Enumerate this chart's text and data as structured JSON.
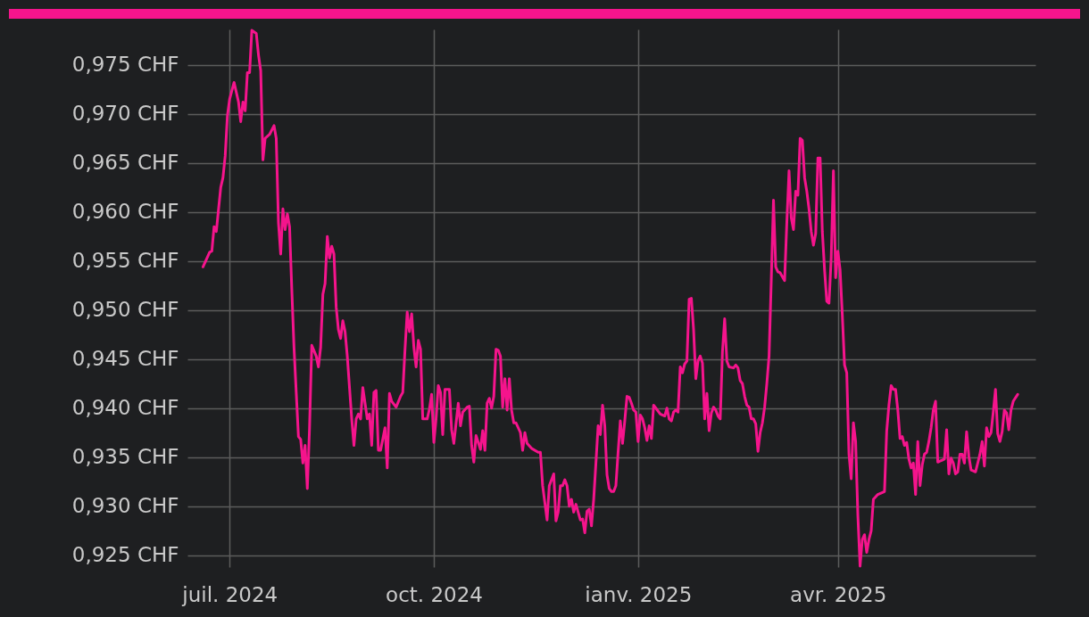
{
  "chart_data": {
    "type": "line",
    "xlim": [
      "2024-06-12",
      "2025-06-29"
    ],
    "ylim": [
      0.9238,
      0.9786
    ],
    "xticks": [
      {
        "value": "2024-07-01",
        "label": "juil. 2024"
      },
      {
        "value": "2024-10-01",
        "label": "oct. 2024"
      },
      {
        "value": "2025-01-01",
        "label": "ianv. 2025"
      },
      {
        "value": "2025-04-01",
        "label": "avr. 2025"
      }
    ],
    "yticks": [
      {
        "value": 0.925,
        "label": "0,925 CHF"
      },
      {
        "value": 0.93,
        "label": "0,930 CHF"
      },
      {
        "value": 0.935,
        "label": "0,935 CHF"
      },
      {
        "value": 0.94,
        "label": "0,940 CHF"
      },
      {
        "value": 0.945,
        "label": "0,945 CHF"
      },
      {
        "value": 0.95,
        "label": "0,950 CHF"
      },
      {
        "value": 0.955,
        "label": "0,955 CHF"
      },
      {
        "value": 0.96,
        "label": "0,960 CHF"
      },
      {
        "value": 0.965,
        "label": "0,965 CHF"
      },
      {
        "value": 0.97,
        "label": "0,970 CHF"
      },
      {
        "value": 0.975,
        "label": "0,975 CHF"
      }
    ],
    "grid": true,
    "marker": "none",
    "line_style": "solid",
    "series": [
      {
        "color": "#f5148c",
        "x": [
          "2024-06-19",
          "2024-06-22",
          "2024-06-23",
          "2024-06-24",
          "2024-06-25",
          "2024-06-27",
          "2024-06-28",
          "2024-06-29",
          "2024-06-30",
          "2024-07-01",
          "2024-07-03",
          "2024-07-05",
          "2024-07-06",
          "2024-07-07",
          "2024-07-08",
          "2024-07-09",
          "2024-07-10",
          "2024-07-11",
          "2024-07-13",
          "2024-07-14",
          "2024-07-15",
          "2024-07-16",
          "2024-07-17",
          "2024-07-19",
          "2024-07-21",
          "2024-07-22",
          "2024-07-23",
          "2024-07-24",
          "2024-07-25",
          "2024-07-26",
          "2024-07-27",
          "2024-07-28",
          "2024-07-29",
          "2024-07-30",
          "2024-07-31",
          "2024-08-01",
          "2024-08-02",
          "2024-08-03",
          "2024-08-04",
          "2024-08-05",
          "2024-08-06",
          "2024-08-07",
          "2024-08-09",
          "2024-08-10",
          "2024-08-11",
          "2024-08-12",
          "2024-08-13",
          "2024-08-14",
          "2024-08-15",
          "2024-08-16",
          "2024-08-17",
          "2024-08-18",
          "2024-08-19",
          "2024-08-20",
          "2024-08-21",
          "2024-08-22",
          "2024-08-23",
          "2024-08-25",
          "2024-08-26",
          "2024-08-27",
          "2024-08-28",
          "2024-08-29",
          "2024-08-30",
          "2024-08-31",
          "2024-09-01",
          "2024-09-02",
          "2024-09-03",
          "2024-09-04",
          "2024-09-05",
          "2024-09-06",
          "2024-09-07",
          "2024-09-09",
          "2024-09-10",
          "2024-09-11",
          "2024-09-12",
          "2024-09-14",
          "2024-09-16",
          "2024-09-17",
          "2024-09-18",
          "2024-09-19",
          "2024-09-20",
          "2024-09-21",
          "2024-09-22",
          "2024-09-23",
          "2024-09-24",
          "2024-09-25",
          "2024-09-26",
          "2024-09-28",
          "2024-09-29",
          "2024-09-30",
          "2024-10-01",
          "2024-10-02",
          "2024-10-03",
          "2024-10-04",
          "2024-10-05",
          "2024-10-06",
          "2024-10-08",
          "2024-10-09",
          "2024-10-10",
          "2024-10-12",
          "2024-10-13",
          "2024-10-14",
          "2024-10-16",
          "2024-10-17",
          "2024-10-18",
          "2024-10-19",
          "2024-10-20",
          "2024-10-22",
          "2024-10-23",
          "2024-10-24",
          "2024-10-25",
          "2024-10-26",
          "2024-10-27",
          "2024-10-28",
          "2024-10-29",
          "2024-10-30",
          "2024-10-31",
          "2024-11-01",
          "2024-11-02",
          "2024-11-03",
          "2024-11-04",
          "2024-11-05",
          "2024-11-06",
          "2024-11-07",
          "2024-11-09",
          "2024-11-10",
          "2024-11-11",
          "2024-11-12",
          "2024-11-14",
          "2024-11-17",
          "2024-11-18",
          "2024-11-19",
          "2024-11-21",
          "2024-11-22",
          "2024-11-24",
          "2024-11-25",
          "2024-11-26",
          "2024-11-27",
          "2024-11-28",
          "2024-11-29",
          "2024-11-30",
          "2024-12-01",
          "2024-12-02",
          "2024-12-03",
          "2024-12-04",
          "2024-12-05",
          "2024-12-06",
          "2024-12-07",
          "2024-12-08",
          "2024-12-09",
          "2024-12-10",
          "2024-12-11",
          "2024-12-12",
          "2024-12-13",
          "2024-12-14",
          "2024-12-15",
          "2024-12-16",
          "2024-12-17",
          "2024-12-18",
          "2024-12-19",
          "2024-12-20",
          "2024-12-21",
          "2024-12-22",
          "2024-12-23",
          "2024-12-24",
          "2024-12-25",
          "2024-12-26",
          "2024-12-27",
          "2024-12-28",
          "2024-12-29",
          "2024-12-30",
          "2024-12-31",
          "2025-01-01",
          "2025-01-02",
          "2025-01-03",
          "2025-01-04",
          "2025-01-05",
          "2025-01-06",
          "2025-01-07",
          "2025-01-08",
          "2025-01-09",
          "2025-01-11",
          "2025-01-13",
          "2025-01-14",
          "2025-01-15",
          "2025-01-16",
          "2025-01-17",
          "2025-01-18",
          "2025-01-19",
          "2025-01-20",
          "2025-01-21",
          "2025-01-22",
          "2025-01-23",
          "2025-01-24",
          "2025-01-25",
          "2025-01-26",
          "2025-01-27",
          "2025-01-28",
          "2025-01-29",
          "2025-01-30",
          "2025-01-31",
          "2025-02-01",
          "2025-02-02",
          "2025-02-03",
          "2025-02-04",
          "2025-02-05",
          "2025-02-06",
          "2025-02-07",
          "2025-02-08",
          "2025-02-09",
          "2025-02-10",
          "2025-02-11",
          "2025-02-13",
          "2025-02-14",
          "2025-02-15",
          "2025-02-16",
          "2025-02-17",
          "2025-02-18",
          "2025-02-19",
          "2025-02-20",
          "2025-02-21",
          "2025-02-22",
          "2025-02-23",
          "2025-02-24",
          "2025-02-25",
          "2025-02-26",
          "2025-02-27",
          "2025-02-28",
          "2025-03-01",
          "2025-03-02",
          "2025-03-03",
          "2025-03-04",
          "2025-03-05",
          "2025-03-06",
          "2025-03-08",
          "2025-03-09",
          "2025-03-10",
          "2025-03-11",
          "2025-03-12",
          "2025-03-13",
          "2025-03-14",
          "2025-03-15",
          "2025-03-16",
          "2025-03-17",
          "2025-03-18",
          "2025-03-19",
          "2025-03-20",
          "2025-03-21",
          "2025-03-22",
          "2025-03-23",
          "2025-03-24",
          "2025-03-25",
          "2025-03-26",
          "2025-03-27",
          "2025-03-28",
          "2025-03-29",
          "2025-03-30",
          "2025-03-31",
          "2025-04-01",
          "2025-04-02",
          "2025-04-03",
          "2025-04-04",
          "2025-04-05",
          "2025-04-06",
          "2025-04-07",
          "2025-04-08",
          "2025-04-09",
          "2025-04-10",
          "2025-04-11",
          "2025-04-12",
          "2025-04-13",
          "2025-04-14",
          "2025-04-15",
          "2025-04-16",
          "2025-04-17",
          "2025-04-19",
          "2025-04-22",
          "2025-04-23",
          "2025-04-24",
          "2025-04-25",
          "2025-04-26",
          "2025-04-27",
          "2025-04-28",
          "2025-04-29",
          "2025-04-30",
          "2025-05-01",
          "2025-05-02",
          "2025-05-03",
          "2025-05-04",
          "2025-05-05",
          "2025-05-06",
          "2025-05-07",
          "2025-05-08",
          "2025-05-09",
          "2025-05-10",
          "2025-05-11",
          "2025-05-12",
          "2025-05-13",
          "2025-05-14",
          "2025-05-15",
          "2025-05-16",
          "2025-05-17",
          "2025-05-18",
          "2025-05-19",
          "2025-05-20",
          "2025-05-21",
          "2025-05-22",
          "2025-05-23",
          "2025-05-24",
          "2025-05-25",
          "2025-05-26",
          "2025-05-27",
          "2025-05-28",
          "2025-05-29",
          "2025-05-30",
          "2025-05-31",
          "2025-06-01",
          "2025-06-02",
          "2025-06-04",
          "2025-06-05",
          "2025-06-06",
          "2025-06-07",
          "2025-06-08",
          "2025-06-09",
          "2025-06-10",
          "2025-06-11",
          "2025-06-12",
          "2025-06-13",
          "2025-06-14",
          "2025-06-15",
          "2025-06-16",
          "2025-06-17",
          "2025-06-18",
          "2025-06-19",
          "2025-06-21"
        ],
        "values": [
          0.9544,
          0.9559,
          0.956,
          0.9585,
          0.958,
          0.9625,
          0.9635,
          0.9657,
          0.9698,
          0.9715,
          0.9732,
          0.9712,
          0.9692,
          0.9712,
          0.9703,
          0.9742,
          0.9742,
          0.9785,
          0.9782,
          0.976,
          0.9744,
          0.9653,
          0.9675,
          0.9679,
          0.9688,
          0.9675,
          0.9589,
          0.9557,
          0.9603,
          0.9582,
          0.9598,
          0.9585,
          0.9521,
          0.9462,
          0.9416,
          0.9371,
          0.9368,
          0.9344,
          0.9362,
          0.9318,
          0.938,
          0.9464,
          0.9453,
          0.9442,
          0.9462,
          0.9516,
          0.9527,
          0.9575,
          0.9553,
          0.9565,
          0.9557,
          0.9503,
          0.948,
          0.9471,
          0.9489,
          0.9478,
          0.9453,
          0.9389,
          0.9362,
          0.9389,
          0.9394,
          0.9389,
          0.9421,
          0.9405,
          0.9389,
          0.9394,
          0.9362,
          0.9416,
          0.9418,
          0.9357,
          0.9357,
          0.938,
          0.9339,
          0.9415,
          0.9407,
          0.9401,
          0.9412,
          0.9416,
          0.946,
          0.9498,
          0.9478,
          0.9496,
          0.9462,
          0.9442,
          0.9469,
          0.946,
          0.9389,
          0.9389,
          0.9399,
          0.9414,
          0.9365,
          0.9389,
          0.9423,
          0.9416,
          0.9373,
          0.9419,
          0.9419,
          0.9378,
          0.9364,
          0.9405,
          0.9382,
          0.9396,
          0.9401,
          0.9402,
          0.9362,
          0.9345,
          0.9372,
          0.9358,
          0.9377,
          0.9357,
          0.9405,
          0.941,
          0.94,
          0.9412,
          0.946,
          0.9459,
          0.9453,
          0.9401,
          0.943,
          0.9398,
          0.943,
          0.9398,
          0.9385,
          0.9385,
          0.9375,
          0.9357,
          0.9375,
          0.9364,
          0.9359,
          0.9355,
          0.9355,
          0.9321,
          0.9286,
          0.9321,
          0.9333,
          0.9285,
          0.9294,
          0.9321,
          0.9321,
          0.9327,
          0.9321,
          0.93,
          0.9307,
          0.9294,
          0.9302,
          0.9294,
          0.9286,
          0.9287,
          0.9273,
          0.9295,
          0.9297,
          0.928,
          0.9307,
          0.9344,
          0.9382,
          0.9373,
          0.9403,
          0.9382,
          0.9332,
          0.9318,
          0.9315,
          0.9315,
          0.9321,
          0.9355,
          0.9387,
          0.9364,
          0.9387,
          0.9412,
          0.9411,
          0.9405,
          0.9398,
          0.9396,
          0.9366,
          0.9393,
          0.9389,
          0.938,
          0.9367,
          0.9382,
          0.9369,
          0.9403,
          0.94,
          0.9394,
          0.9392,
          0.94,
          0.9389,
          0.9387,
          0.9396,
          0.9398,
          0.9396,
          0.9442,
          0.9436,
          0.9445,
          0.9448,
          0.9511,
          0.9512,
          0.948,
          0.943,
          0.9448,
          0.9453,
          0.9446,
          0.9389,
          0.9415,
          0.9377,
          0.9395,
          0.9401,
          0.9398,
          0.9392,
          0.9389,
          0.9457,
          0.9491,
          0.9448,
          0.9442,
          0.9441,
          0.9444,
          0.9441,
          0.9428,
          0.9425,
          0.9412,
          0.9403,
          0.9401,
          0.9389,
          0.9389,
          0.9384,
          0.9356,
          0.9375,
          0.9385,
          0.9401,
          0.9425,
          0.9453,
          0.9531,
          0.9612,
          0.9544,
          0.9539,
          0.9538,
          0.953,
          0.9589,
          0.9642,
          0.9594,
          0.9582,
          0.9621,
          0.9617,
          0.9675,
          0.9673,
          0.9635,
          0.9621,
          0.9603,
          0.958,
          0.9566,
          0.9578,
          0.9655,
          0.9655,
          0.958,
          0.9541,
          0.9509,
          0.9507,
          0.9553,
          0.9642,
          0.9533,
          0.956,
          0.9541,
          0.9495,
          0.9444,
          0.9436,
          0.9353,
          0.9328,
          0.9385,
          0.9366,
          0.9291,
          0.9239,
          0.9266,
          0.9271,
          0.9253,
          0.9266,
          0.9275,
          0.9307,
          0.9312,
          0.9315,
          0.9377,
          0.9403,
          0.9423,
          0.9419,
          0.9419,
          0.9398,
          0.9369,
          0.9371,
          0.9362,
          0.9365,
          0.9348,
          0.9339,
          0.9344,
          0.9312,
          0.9366,
          0.9321,
          0.9342,
          0.9353,
          0.9355,
          0.9366,
          0.938,
          0.9398,
          0.9407,
          0.9345,
          0.9346,
          0.9347,
          0.9348,
          0.9378,
          0.9333,
          0.9349,
          0.9344,
          0.9333,
          0.9335,
          0.9353,
          0.9353,
          0.9344,
          0.9376,
          0.9351,
          0.9337,
          0.9336,
          0.9335,
          0.9353,
          0.9366,
          0.9341,
          0.938,
          0.9371,
          0.9375,
          0.9396,
          0.9419,
          0.9374,
          0.9366,
          0.9376,
          0.9398,
          0.9395,
          0.9378,
          0.9398,
          0.9407,
          0.9414
        ]
      }
    ]
  }
}
